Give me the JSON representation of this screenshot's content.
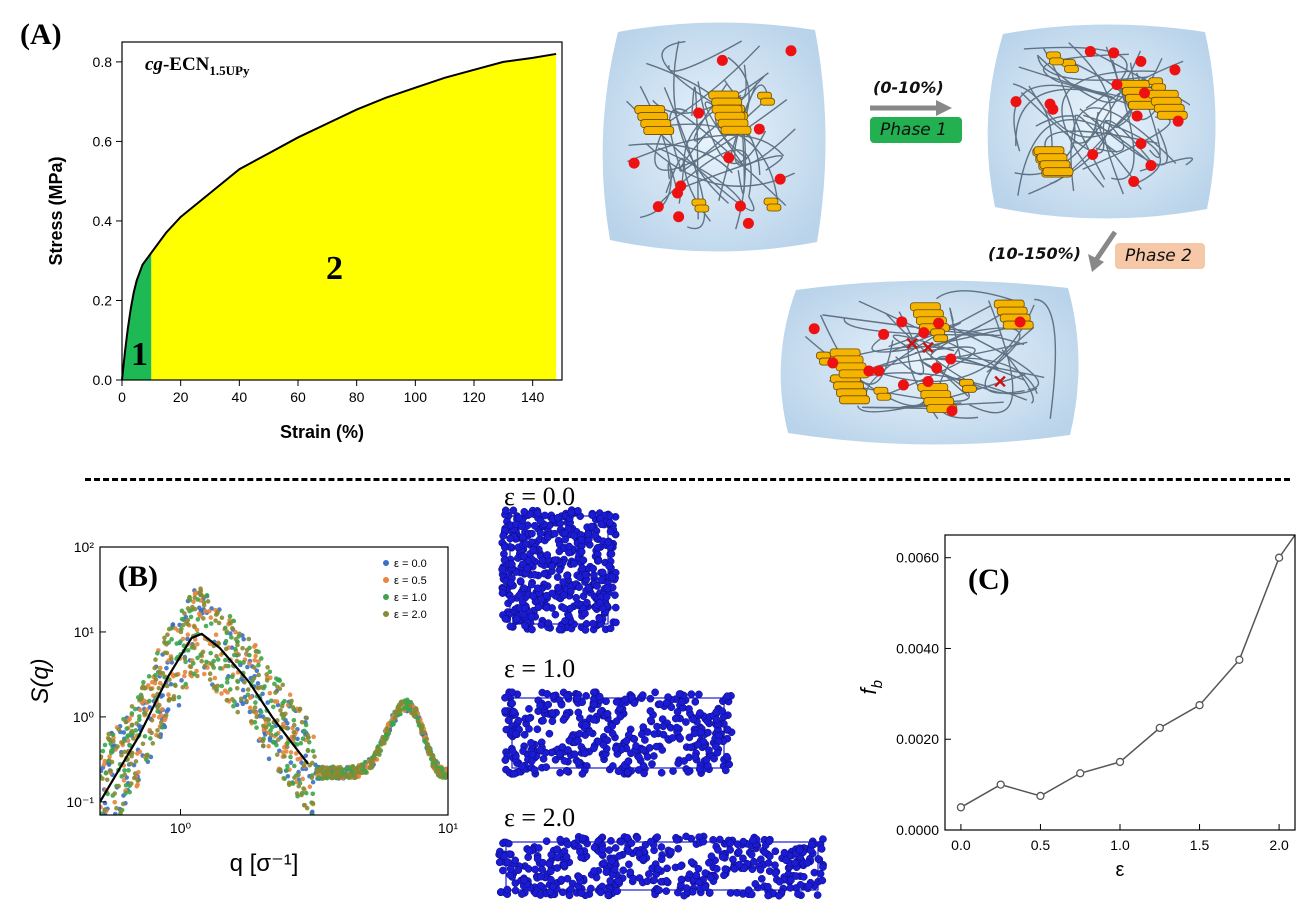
{
  "panels": {
    "a": "(A)",
    "b": "(B)",
    "c": "(C)"
  },
  "stress_strain": {
    "title_main": "cg",
    "title_rest": "-ECN",
    "title_sub": "1.5UPy",
    "region1_label": "1",
    "region2_label": "2",
    "region1_color": "#1db954",
    "region2_color": "#ffff00"
  },
  "schematic": {
    "arrow1_range": "(0-10%)",
    "phase1_label": "Phase 1",
    "phase1_color": "#22b050",
    "arrow2_range": "(10-150%)",
    "phase2_label": "Phase 2",
    "phase2_color": "#f7c8a8",
    "crosslink_color": "#ee1111",
    "cluster_color": "#f4b400"
  },
  "snapshots": {
    "eps0": "ε = 0.0",
    "eps1": "ε = 1.0",
    "eps2": "ε = 2.0",
    "bead_color": "#1b1bd6"
  },
  "chart_data": [
    {
      "id": "A",
      "type": "area",
      "xlabel": "Strain (%)",
      "ylabel": "Stress (MPa)",
      "xlim": [
        0,
        150
      ],
      "ylim": [
        0,
        0.85
      ],
      "xticks": [
        "0",
        "20",
        "40",
        "60",
        "80",
        "100",
        "120",
        "140"
      ],
      "yticks": [
        "0.0",
        "0.2",
        "0.4",
        "0.6",
        "0.8"
      ],
      "x": [
        0,
        1,
        2,
        3,
        4,
        5,
        6,
        7,
        8,
        9,
        10,
        15,
        20,
        30,
        40,
        50,
        60,
        70,
        80,
        90,
        100,
        110,
        120,
        130,
        140,
        148
      ],
      "y": [
        0,
        0.07,
        0.13,
        0.18,
        0.22,
        0.25,
        0.27,
        0.29,
        0.3,
        0.31,
        0.32,
        0.37,
        0.41,
        0.47,
        0.53,
        0.57,
        0.61,
        0.645,
        0.68,
        0.71,
        0.735,
        0.76,
        0.78,
        0.8,
        0.81,
        0.82
      ],
      "regions": [
        {
          "name": "1",
          "x_range": [
            0,
            10
          ]
        },
        {
          "name": "2",
          "x_range": [
            10,
            148
          ]
        }
      ]
    },
    {
      "id": "B",
      "type": "scatter",
      "xlabel": "q [σ⁻¹]",
      "ylabel": "S(q)",
      "xscale": "log",
      "yscale": "log",
      "xlim": [
        0.5,
        10
      ],
      "ylim": [
        0.07,
        100
      ],
      "xticks": [
        "10⁰",
        "10¹"
      ],
      "yticks": [
        "10⁻¹",
        "10⁰",
        "10¹",
        "10²"
      ],
      "legend_position": "top-right",
      "series": [
        {
          "name": "ε = 0.0",
          "color": "#3a6fc4"
        },
        {
          "name": "ε = 0.5",
          "color": "#e8843c"
        },
        {
          "name": "ε = 1.0",
          "color": "#3aa54a"
        },
        {
          "name": "ε = 2.0",
          "color": "#8a8a32"
        }
      ],
      "fit_line": {
        "x": [
          0.5,
          0.7,
          0.9,
          1.1,
          1.2,
          1.4,
          1.8,
          2.2,
          2.6,
          3.0
        ],
        "y": [
          0.1,
          0.6,
          3.0,
          8.5,
          9.5,
          6.5,
          2.6,
          1.0,
          0.5,
          0.28
        ]
      }
    },
    {
      "id": "C",
      "type": "line",
      "xlabel": "ε",
      "ylabel": "f_b",
      "xlim": [
        -0.1,
        2.1
      ],
      "ylim": [
        0,
        0.0065
      ],
      "xticks": [
        "0.0",
        "0.5",
        "1.0",
        "1.5",
        "2.0"
      ],
      "yticks": [
        "0.0000",
        "0.0020",
        "0.0040",
        "0.0060"
      ],
      "x": [
        0.0,
        0.25,
        0.5,
        0.75,
        1.0,
        1.25,
        1.5,
        1.75,
        2.0
      ],
      "y": [
        0.0005,
        0.001,
        0.00075,
        0.00125,
        0.0015,
        0.00225,
        0.00275,
        0.00375,
        0.006
      ],
      "line_color": "#555555"
    }
  ]
}
